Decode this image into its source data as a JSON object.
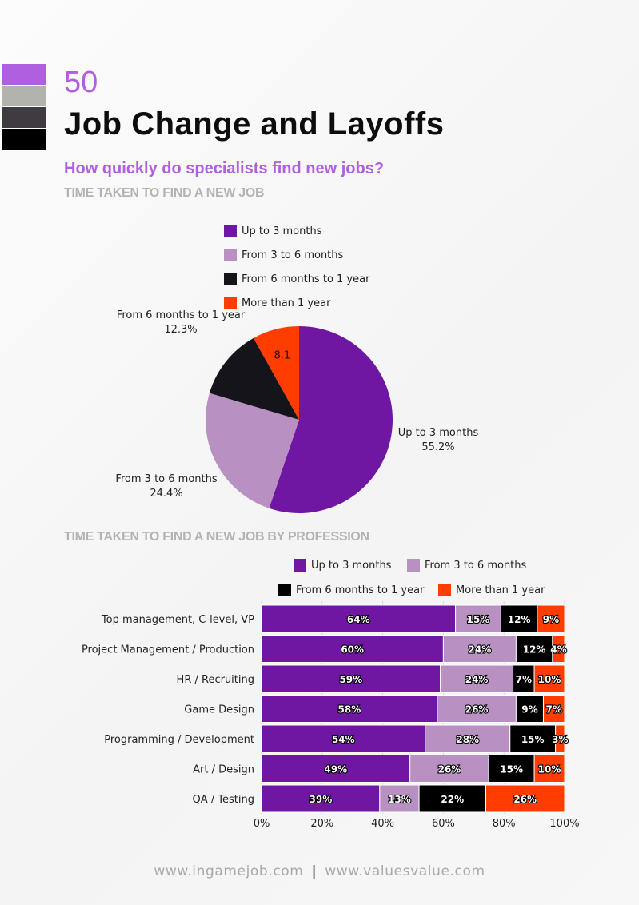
{
  "decor_colors": [
    "#b05fe0",
    "#b2b2ad",
    "#3f3b40",
    "#000000"
  ],
  "page": {
    "number": "50",
    "title": "Job Change and Layoffs",
    "subtitle": "How quickly do specialists find new jobs?"
  },
  "footer": {
    "left": "www.ingamejob.com",
    "separator": "|",
    "right": "www.valuesvalue.com"
  },
  "chart_data": [
    {
      "type": "pie",
      "title": "TIME TAKEN TO FIND A NEW JOB",
      "slices": [
        {
          "name": "Up to 3 months",
          "value": 55.2,
          "label": "55.2%",
          "color": "#6f17a3"
        },
        {
          "name": "From 3 to 6 months",
          "value": 24.4,
          "label": "24.4%",
          "color": "#b891c2"
        },
        {
          "name": "From 6 months to 1 year",
          "value": 12.3,
          "label": "12.3%",
          "color": "#16141b"
        },
        {
          "name": "More than 1 year",
          "value": 8.1,
          "label": "8.1",
          "color": "#ff3d00"
        }
      ],
      "legend": [
        "Up to 3 months",
        "From 3 to 6 months",
        "From 6 months to 1 year",
        "More than 1 year"
      ],
      "legend_placement": "top"
    },
    {
      "type": "bar",
      "stacked": true,
      "orientation": "horizontal",
      "title": "TIME TAKEN TO FIND A NEW JOB BY PROFESSION",
      "categories": [
        "Top management, C-level, VP",
        "Project Management / Production",
        "HR / Recruiting",
        "Game Design",
        "Programming / Development",
        "Art / Design",
        "QA / Testing"
      ],
      "series": [
        {
          "name": "Up to 3 months",
          "color": "#6f17a3",
          "values": [
            64,
            60,
            59,
            58,
            54,
            49,
            39
          ]
        },
        {
          "name": "From 3 to 6 months",
          "color": "#b891c2",
          "values": [
            15,
            24,
            24,
            26,
            28,
            26,
            13
          ]
        },
        {
          "name": "From 6 months to 1 year",
          "color": "#000000",
          "values": [
            12,
            12,
            7,
            9,
            15,
            15,
            22
          ]
        },
        {
          "name": "More than 1 year",
          "color": "#ff3d00",
          "values": [
            9,
            4,
            10,
            7,
            3,
            10,
            26
          ]
        }
      ],
      "x_ticks": [
        "0%",
        "20%",
        "40%",
        "60%",
        "80%",
        "100%"
      ],
      "xlim": [
        0,
        100
      ],
      "grid": true,
      "legend_placement": "top"
    }
  ]
}
